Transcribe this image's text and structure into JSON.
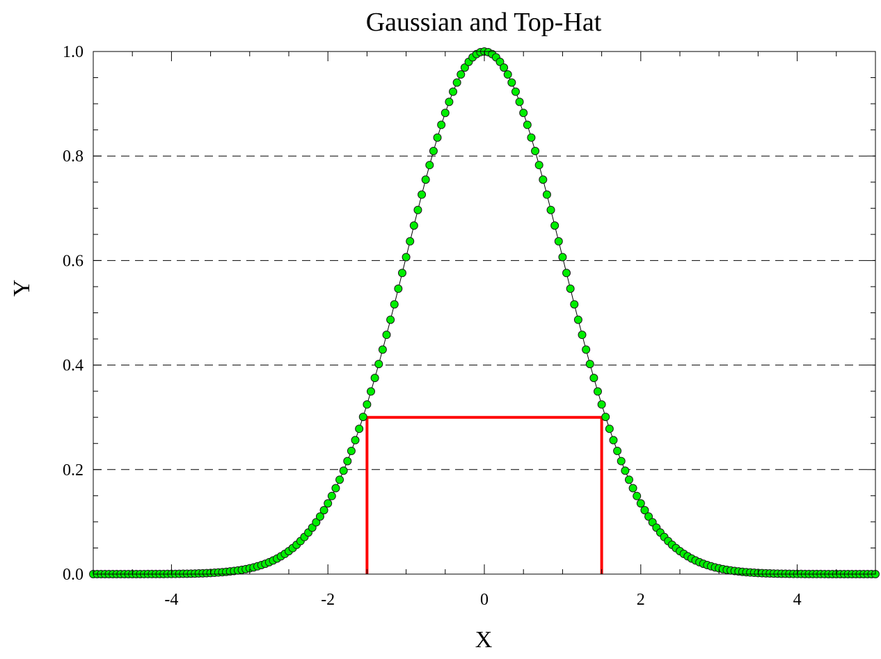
{
  "chart_data": {
    "type": "scatter",
    "title": "Gaussian and Top-Hat",
    "xlabel": "X",
    "ylabel": "Y",
    "xlim": [
      -5,
      5
    ],
    "ylim": [
      0,
      1
    ],
    "x_ticks": [
      "-4",
      "-2",
      "0",
      "2",
      "4"
    ],
    "x_tick_values": [
      -4,
      -2,
      0,
      2,
      4
    ],
    "y_ticks": [
      "0.0",
      "0.2",
      "0.4",
      "0.6",
      "0.8",
      "1.0"
    ],
    "y_tick_values": [
      0,
      0.2,
      0.4,
      0.6,
      0.8,
      1.0
    ],
    "grid": "horizontal dashed at 0.2, 0.4, 0.6, 0.8",
    "series": [
      {
        "kind": "scatter-line",
        "formula": "exp(-x^2/2)",
        "x_start": -5,
        "x_end": 5,
        "x_step": 0.05,
        "marker_color": "#00ee00",
        "line_color": "#000000"
      },
      {
        "kind": "top-hat",
        "x": [
          -1.5,
          -1.5,
          1.5,
          1.5
        ],
        "y": [
          0,
          0.3,
          0.3,
          0
        ],
        "color": "#ff0000"
      }
    ]
  }
}
